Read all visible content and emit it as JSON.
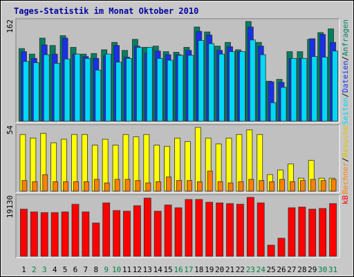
{
  "chart_data": {
    "title": "Tages-Statistik im Monat Oktober 2010",
    "categories": [
      "1",
      "2",
      "3",
      "4",
      "5",
      "6",
      "7",
      "8",
      "9",
      "10",
      "11",
      "12",
      "13",
      "14",
      "15",
      "16",
      "17",
      "18",
      "19",
      "20",
      "21",
      "22",
      "23",
      "24",
      "25",
      "26",
      "27",
      "28",
      "29",
      "30",
      "31"
    ],
    "category_colors": [
      "#000000",
      "#008040",
      "#008040",
      "#000000",
      "#000000",
      "#000000",
      "#000000",
      "#000000",
      "#008040",
      "#008040",
      "#000000",
      "#000000",
      "#000000",
      "#000000",
      "#000000",
      "#008040",
      "#008040",
      "#000000",
      "#000000",
      "#000000",
      "#000000",
      "#000000",
      "#008040",
      "#008040",
      "#000000",
      "#000000",
      "#000000",
      "#000000",
      "#000000",
      "#008040",
      "#008040"
    ],
    "legend_separator": "/",
    "panels": [
      {
        "type": "bar",
        "ylim": [
          0,
          162
        ],
        "yticks": [
          162
        ],
        "series": [
          {
            "name": "Anfragen",
            "color": "#008060",
            "values": [
              118,
              109,
              135,
              123,
              139,
              120,
              109,
              110,
              116,
              128,
              115,
              133,
              120,
              122,
              113,
              112,
              120,
              153,
              145,
              122,
              128,
              116,
              162,
              128,
              65,
              68,
              113,
              113,
              133,
              144,
              150
            ]
          },
          {
            "name": "Dateien",
            "color": "#1830e8",
            "values": [
              113,
              102,
              124,
              109,
              135,
              109,
              105,
              102,
              106,
              123,
              104,
              122,
              111,
              114,
              108,
              108,
              115,
              146,
              140,
              115,
              121,
              113,
              153,
              122,
              64,
              63,
              102,
              102,
              134,
              141,
              128
            ]
          },
          {
            "name": "Seiten",
            "color": "#00d8f8",
            "values": [
              97,
              95,
              108,
              94,
              101,
              109,
              102,
              83,
              109,
              96,
              102,
              120,
              120,
              102,
              99,
              107,
              107,
              131,
              126,
              109,
              113,
              113,
              132,
              108,
              30,
              55,
              102,
              102,
              105,
              104,
              114
            ]
          }
        ]
      },
      {
        "type": "bar",
        "ylim": [
          0,
          54
        ],
        "yticks": [
          54
        ],
        "series": [
          {
            "name": "Besuche",
            "color": "#ffff00",
            "values": [
              48,
              45,
              49,
              41,
              44,
              48,
              48,
              39,
              44,
              39,
              48,
              46,
              48,
              39,
              38,
              45,
              42,
              54,
              45,
              40,
              45,
              48,
              52,
              48,
              14,
              18,
              23,
              11,
              26,
              11,
              11
            ]
          },
          {
            "name": "Rechner",
            "color": "#ff8000",
            "values": [
              9,
              8,
              14,
              8,
              8,
              8,
              8,
              10,
              7,
              10,
              10,
              9,
              7,
              8,
              12,
              9,
              9,
              8,
              17,
              8,
              7,
              8,
              10,
              9,
              8,
              10,
              8,
              9,
              10,
              9,
              10
            ]
          }
        ]
      },
      {
        "type": "bar",
        "ylim": [
          0,
          19130
        ],
        "yticks": [
          19130
        ],
        "series": [
          {
            "name": "kB",
            "color": "#ff0000",
            "values": [
              15300,
              14400,
              14180,
              14180,
              14400,
              16880,
              14400,
              10800,
              17330,
              14850,
              14630,
              16430,
              18900,
              14630,
              16650,
              15750,
              18450,
              18450,
              17550,
              17330,
              17100,
              16900,
              19130,
              17330,
              3600,
              5850,
              15750,
              15980,
              15300,
              15530,
              17100
            ]
          }
        ]
      }
    ]
  }
}
